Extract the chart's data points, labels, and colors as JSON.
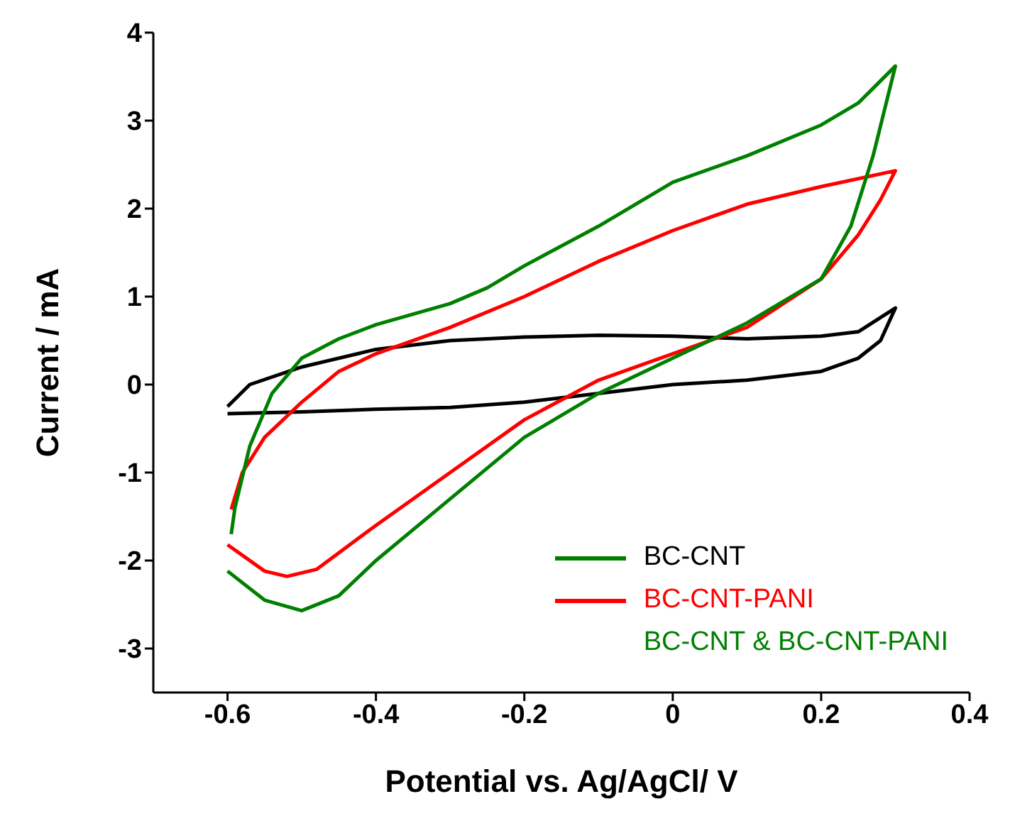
{
  "chart_data": {
    "type": "line",
    "xlabel": "Potential vs. Ag/AgCl/ V",
    "ylabel": "Current / mA",
    "xlim": [
      -0.7,
      0.4
    ],
    "ylim": [
      -3.5,
      4
    ],
    "xticks": [
      -0.6,
      -0.4,
      -0.2,
      0.0,
      0.2,
      0.4
    ],
    "yticks": [
      -3,
      -2,
      -1,
      0,
      1,
      2,
      3,
      4
    ],
    "legend": "bottom right",
    "marker": "none",
    "line_style": "solid",
    "annotations": [
      "BC-CNT & BC-CNT-PANI"
    ],
    "series": [
      {
        "color": "#000000",
        "x": [
          -0.6,
          -0.5,
          -0.4,
          -0.3,
          -0.2,
          -0.1,
          0,
          0.1,
          0.2,
          0.25,
          0.28,
          0.3,
          0.25,
          0.2,
          0.1,
          0,
          -0.1,
          -0.2,
          -0.3,
          -0.4,
          -0.5,
          -0.57,
          -0.6
        ],
        "values": [
          -0.33,
          -0.31,
          -0.28,
          -0.26,
          -0.2,
          -0.1,
          0,
          0.05,
          0.15,
          0.3,
          0.5,
          0.87,
          0.6,
          0.55,
          0.52,
          0.55,
          0.56,
          0.54,
          0.5,
          0.4,
          0.2,
          0,
          -0.25
        ]
      },
      {
        "name": "BC-CNT-PANI",
        "color": "#ff0000",
        "x": [
          -0.6,
          -0.55,
          -0.52,
          -0.48,
          -0.4,
          -0.3,
          -0.2,
          -0.1,
          0,
          0.1,
          0.2,
          0.25,
          0.28,
          0.3,
          0.2,
          0.1,
          0,
          -0.1,
          -0.2,
          -0.3,
          -0.4,
          -0.45,
          -0.5,
          -0.55,
          -0.58,
          -0.595
        ],
        "values": [
          -1.82,
          -2.12,
          -2.18,
          -2.1,
          -1.6,
          -1.0,
          -0.4,
          0.05,
          0.35,
          0.65,
          1.2,
          1.7,
          2.1,
          2.43,
          2.25,
          2.05,
          1.75,
          1.4,
          1.0,
          0.65,
          0.35,
          0.15,
          -0.2,
          -0.6,
          -1.0,
          -1.42
        ]
      },
      {
        "name": "BC-CNT",
        "color": "#008000",
        "x": [
          -0.6,
          -0.55,
          -0.5,
          -0.45,
          -0.4,
          -0.3,
          -0.2,
          -0.1,
          0,
          0.1,
          0.2,
          0.24,
          0.27,
          0.3,
          0.25,
          0.2,
          0.1,
          0,
          -0.1,
          -0.2,
          -0.25,
          -0.3,
          -0.4,
          -0.45,
          -0.5,
          -0.54,
          -0.57,
          -0.59,
          -0.595
        ],
        "values": [
          -2.12,
          -2.45,
          -2.57,
          -2.4,
          -2.0,
          -1.3,
          -0.6,
          -0.1,
          0.3,
          0.7,
          1.2,
          1.8,
          2.6,
          3.62,
          3.2,
          2.95,
          2.6,
          2.3,
          1.8,
          1.35,
          1.1,
          0.92,
          0.68,
          0.52,
          0.3,
          -0.1,
          -0.7,
          -1.4,
          -1.7
        ]
      }
    ]
  }
}
